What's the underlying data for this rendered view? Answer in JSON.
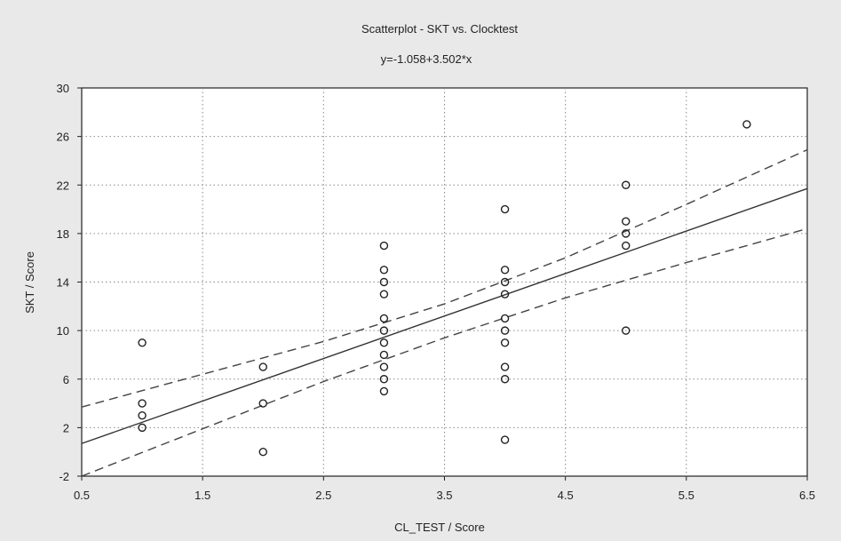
{
  "chart_data": {
    "type": "scatter",
    "title": "Scatterplot - SKT vs. Clocktest",
    "subtitle": "y=-1.058+3.502*x",
    "xlabel": "CL_TEST / Score",
    "ylabel": "SKT / Score",
    "xlim": [
      0.5,
      6.5
    ],
    "ylim": [
      -2,
      30
    ],
    "xticks": [
      0.5,
      1.5,
      2.5,
      3.5,
      4.5,
      5.5,
      6.5
    ],
    "yticks": [
      -2,
      2,
      6,
      10,
      14,
      18,
      22,
      26,
      30
    ],
    "xtick_labels": [
      "0.5",
      "1.5",
      "2.5",
      "3.5",
      "4.5",
      "5.5",
      "6.5"
    ],
    "ytick_labels": [
      "-2",
      "2",
      "6",
      "10",
      "14",
      "18",
      "22",
      "26",
      "30"
    ],
    "grid": true,
    "points": [
      {
        "x": 1,
        "y": 9
      },
      {
        "x": 1,
        "y": 4
      },
      {
        "x": 1,
        "y": 3
      },
      {
        "x": 1,
        "y": 2
      },
      {
        "x": 2,
        "y": 7
      },
      {
        "x": 2,
        "y": 4
      },
      {
        "x": 2,
        "y": 0
      },
      {
        "x": 3,
        "y": 17
      },
      {
        "x": 3,
        "y": 15
      },
      {
        "x": 3,
        "y": 14
      },
      {
        "x": 3,
        "y": 13
      },
      {
        "x": 3,
        "y": 11
      },
      {
        "x": 3,
        "y": 10
      },
      {
        "x": 3,
        "y": 9
      },
      {
        "x": 3,
        "y": 8
      },
      {
        "x": 3,
        "y": 7
      },
      {
        "x": 3,
        "y": 6
      },
      {
        "x": 3,
        "y": 5
      },
      {
        "x": 4,
        "y": 20
      },
      {
        "x": 4,
        "y": 15
      },
      {
        "x": 4,
        "y": 14
      },
      {
        "x": 4,
        "y": 13
      },
      {
        "x": 4,
        "y": 11
      },
      {
        "x": 4,
        "y": 10
      },
      {
        "x": 4,
        "y": 9
      },
      {
        "x": 4,
        "y": 7
      },
      {
        "x": 4,
        "y": 6
      },
      {
        "x": 4,
        "y": 1
      },
      {
        "x": 5,
        "y": 22
      },
      {
        "x": 5,
        "y": 19
      },
      {
        "x": 5,
        "y": 18
      },
      {
        "x": 5,
        "y": 17
      },
      {
        "x": 5,
        "y": 10
      },
      {
        "x": 6,
        "y": 27
      }
    ],
    "fit_line": {
      "intercept": -1.058,
      "slope": 3.502
    },
    "confidence_band": {
      "upper": [
        {
          "x": 0.5,
          "y": 3.7
        },
        {
          "x": 1.5,
          "y": 6.4
        },
        {
          "x": 2.5,
          "y": 9.1
        },
        {
          "x": 3.5,
          "y": 12.2
        },
        {
          "x": 4.5,
          "y": 16.0
        },
        {
          "x": 5.5,
          "y": 20.4
        },
        {
          "x": 6.5,
          "y": 24.9
        }
      ],
      "lower": [
        {
          "x": 0.5,
          "y": -2.0
        },
        {
          "x": 1.5,
          "y": 1.9
        },
        {
          "x": 2.5,
          "y": 5.8
        },
        {
          "x": 3.5,
          "y": 9.4
        },
        {
          "x": 4.5,
          "y": 12.7
        },
        {
          "x": 5.5,
          "y": 15.6
        },
        {
          "x": 6.5,
          "y": 18.4
        }
      ]
    }
  }
}
